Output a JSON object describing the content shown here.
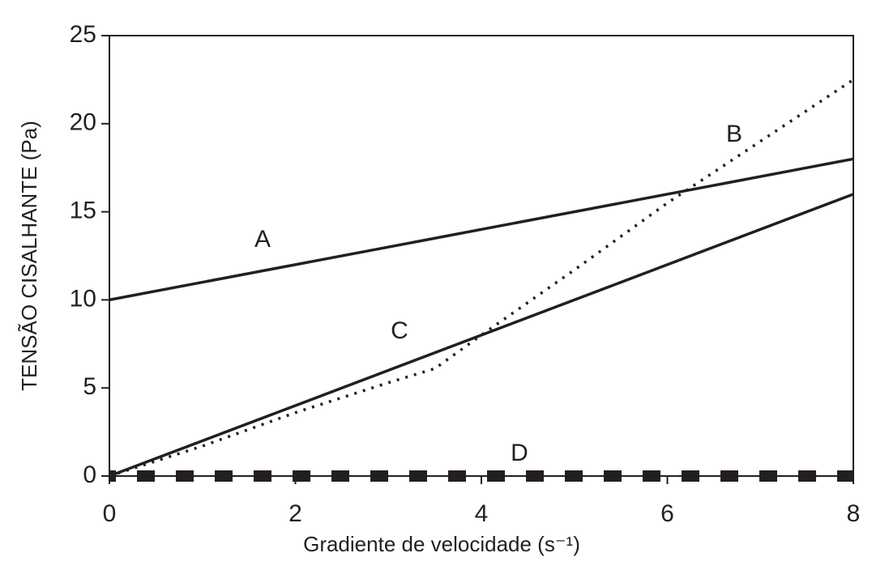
{
  "chart_data": {
    "type": "line",
    "x_label": "Gradiente de velocidade (s⁻¹)",
    "y_label": "TENSÃO CISALHANTE (Pa)",
    "xlim": [
      0,
      8
    ],
    "ylim": [
      0,
      25
    ],
    "xticks": [
      0,
      2,
      4,
      6,
      8
    ],
    "yticks": [
      0,
      5,
      10,
      15,
      20,
      25
    ],
    "series": [
      {
        "name": "A",
        "color": "#231f20",
        "style": "solid",
        "x": [
          0,
          8
        ],
        "values": [
          10,
          18
        ]
      },
      {
        "name": "B",
        "color": "#231f20",
        "style": "dotted",
        "x": [
          0,
          1,
          2,
          3,
          3.5,
          4,
          5,
          6,
          7,
          8
        ],
        "values": [
          0,
          1.7,
          3.6,
          5.3,
          6.1,
          8,
          11.7,
          15.5,
          19,
          22.5
        ]
      },
      {
        "name": "C",
        "color": "#231f20",
        "style": "solid",
        "x": [
          0,
          8
        ],
        "values": [
          0,
          16
        ]
      },
      {
        "name": "D",
        "color": "#231f20",
        "style": "squares",
        "x": [
          0,
          8
        ],
        "values": [
          0,
          0
        ]
      }
    ]
  }
}
